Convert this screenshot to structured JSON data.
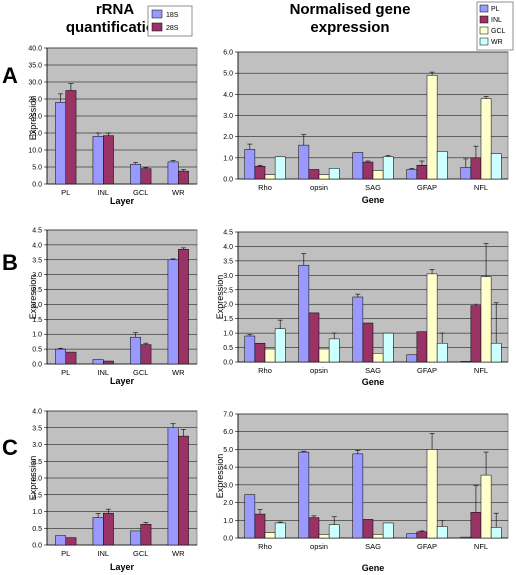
{
  "headers": {
    "left_line1": "rRNA",
    "left_line2": "quantification",
    "right_line1": "Normalised gene",
    "right_line2": "expression"
  },
  "row_labels": [
    "A",
    "B",
    "C"
  ],
  "left_legend": [
    {
      "name": "18S",
      "color": "#9999ff"
    },
    {
      "name": "28S",
      "color": "#993366"
    }
  ],
  "right_legend": [
    {
      "name": "PL",
      "color": "#9999ff"
    },
    {
      "name": "INL",
      "color": "#993366"
    },
    {
      "name": "GCL",
      "color": "#ffffcc"
    },
    {
      "name": "WR",
      "color": "#ccffff"
    }
  ],
  "chart_data": [
    {
      "id": "A-left",
      "type": "bar",
      "categories": [
        "PL",
        "INL",
        "GCL",
        "WR"
      ],
      "series": [
        {
          "name": "18S",
          "values": [
            24.0,
            14.0,
            5.8,
            6.5
          ],
          "errors": [
            2.5,
            1.0,
            0.5,
            0.4
          ],
          "color": "#9999ff"
        },
        {
          "name": "28S",
          "values": [
            27.5,
            14.2,
            4.5,
            3.8
          ],
          "errors": [
            2.0,
            0.8,
            0.3,
            0.4
          ],
          "color": "#993366"
        }
      ],
      "xlabel": "Layer",
      "ylabel": "Expression",
      "ylim": [
        0,
        40
      ],
      "yticks": [
        0,
        5,
        10,
        15,
        20,
        25,
        30,
        35,
        40
      ],
      "tick_decimals": 1
    },
    {
      "id": "A-right",
      "type": "bar",
      "categories": [
        "Rho",
        "opsin",
        "SAG",
        "GFAP",
        "NFL"
      ],
      "series": [
        {
          "name": "PL",
          "values": [
            1.4,
            1.6,
            1.25,
            0.45,
            0.55
          ],
          "errors": [
            0.25,
            0.5,
            0.0,
            0.05,
            0.4
          ],
          "color": "#9999ff"
        },
        {
          "name": "INL",
          "values": [
            0.6,
            0.45,
            0.8,
            0.65,
            1.0
          ],
          "errors": [
            0.05,
            0.0,
            0.05,
            0.2,
            0.55
          ],
          "color": "#993366"
        },
        {
          "name": "GCL",
          "values": [
            0.2,
            0.2,
            0.4,
            4.9,
            3.8
          ],
          "errors": [
            0.0,
            0.0,
            0.0,
            0.15,
            0.1
          ],
          "color": "#ffffcc"
        },
        {
          "name": "WR",
          "values": [
            1.05,
            0.5,
            1.05,
            1.3,
            1.2
          ],
          "errors": [
            0.0,
            0.0,
            0.05,
            0.0,
            0.0
          ],
          "color": "#ccffff"
        }
      ],
      "xlabel": "Gene",
      "ylabel": "",
      "ylim": [
        0,
        6
      ],
      "yticks": [
        0,
        1,
        2,
        3,
        4,
        5,
        6
      ],
      "tick_decimals": 1
    },
    {
      "id": "B-left",
      "type": "bar",
      "categories": [
        "PL",
        "INL",
        "GCL",
        "WR"
      ],
      "series": [
        {
          "name": "18S",
          "values": [
            0.5,
            0.15,
            0.9,
            3.5
          ],
          "errors": [
            0.03,
            0.0,
            0.15,
            0.03
          ],
          "color": "#9999ff"
        },
        {
          "name": "28S",
          "values": [
            0.4,
            0.1,
            0.65,
            3.85
          ],
          "errors": [
            0.0,
            0.0,
            0.05,
            0.05
          ],
          "color": "#993366"
        }
      ],
      "xlabel": "Layer",
      "ylabel": "Expression",
      "ylim": [
        0,
        4.5
      ],
      "yticks": [
        0,
        0.5,
        1,
        1.5,
        2,
        2.5,
        3,
        3.5,
        4,
        4.5
      ],
      "tick_decimals": 1
    },
    {
      "id": "B-right",
      "type": "bar",
      "categories": [
        "Rho",
        "opsin",
        "SAG",
        "GFAP",
        "NFL"
      ],
      "series": [
        {
          "name": "PL",
          "values": [
            0.9,
            3.35,
            2.25,
            0.25,
            0.02
          ],
          "errors": [
            0.05,
            0.4,
            0.1,
            0.0,
            0.0
          ],
          "color": "#9999ff"
        },
        {
          "name": "INL",
          "values": [
            0.65,
            1.7,
            1.35,
            1.05,
            1.95
          ],
          "errors": [
            0.0,
            0.0,
            0.0,
            0.0,
            0.05
          ],
          "color": "#993366"
        },
        {
          "name": "GCL",
          "values": [
            0.45,
            0.45,
            0.3,
            3.05,
            2.95
          ],
          "errors": [
            0.0,
            0.0,
            0.0,
            0.15,
            1.15
          ],
          "color": "#ffffcc"
        },
        {
          "name": "WR",
          "values": [
            1.15,
            0.8,
            1.0,
            0.65,
            0.65
          ],
          "errors": [
            0.3,
            0.2,
            0.0,
            0.35,
            1.4
          ],
          "color": "#ccffff"
        }
      ],
      "xlabel": "Gene",
      "ylabel": "Expression",
      "ylim": [
        0,
        4.5
      ],
      "yticks": [
        0,
        0.5,
        1,
        1.5,
        2,
        2.5,
        3,
        3.5,
        4,
        4.5
      ],
      "tick_decimals": 1
    },
    {
      "id": "C-left",
      "type": "bar",
      "categories": [
        "PL",
        "INL",
        "GCL",
        "WR"
      ],
      "series": [
        {
          "name": "18S",
          "values": [
            0.28,
            0.82,
            0.42,
            3.5
          ],
          "errors": [
            0.0,
            0.12,
            0.0,
            0.12
          ],
          "color": "#9999ff"
        },
        {
          "name": "28S",
          "values": [
            0.22,
            0.95,
            0.62,
            3.25
          ],
          "errors": [
            0.0,
            0.12,
            0.05,
            0.2
          ],
          "color": "#993366"
        }
      ],
      "xlabel": "Layer",
      "ylabel": "Expression",
      "ylim": [
        0,
        4
      ],
      "yticks": [
        0,
        0.5,
        1,
        1.5,
        2,
        2.5,
        3,
        3.5,
        4
      ],
      "tick_decimals": 1
    },
    {
      "id": "C-right",
      "type": "bar",
      "categories": [
        "Rho",
        "opsin",
        "SAG",
        "GFAP",
        "NFL"
      ],
      "series": [
        {
          "name": "PL",
          "values": [
            2.45,
            4.85,
            4.75,
            0.25,
            0.05
          ],
          "errors": [
            0.0,
            0.05,
            0.2,
            0.0,
            0.0
          ],
          "color": "#9999ff"
        },
        {
          "name": "INL",
          "values": [
            1.35,
            1.15,
            1.05,
            0.35,
            1.45
          ],
          "errors": [
            0.25,
            0.1,
            0.0,
            0.05,
            1.5
          ],
          "color": "#993366"
        },
        {
          "name": "GCL",
          "values": [
            0.3,
            0.2,
            0.2,
            5.0,
            3.55
          ],
          "errors": [
            0.0,
            0.0,
            0.0,
            0.9,
            1.3
          ],
          "color": "#ffffcc"
        },
        {
          "name": "WR",
          "values": [
            0.85,
            0.75,
            0.85,
            0.65,
            0.6
          ],
          "errors": [
            0.05,
            0.45,
            0.0,
            0.35,
            0.8
          ],
          "color": "#ccffff"
        }
      ],
      "xlabel": "Gene",
      "ylabel": "Expression",
      "ylim": [
        0,
        7
      ],
      "yticks": [
        0,
        1,
        2,
        3,
        4,
        5,
        6,
        7
      ],
      "tick_decimals": 1
    }
  ]
}
